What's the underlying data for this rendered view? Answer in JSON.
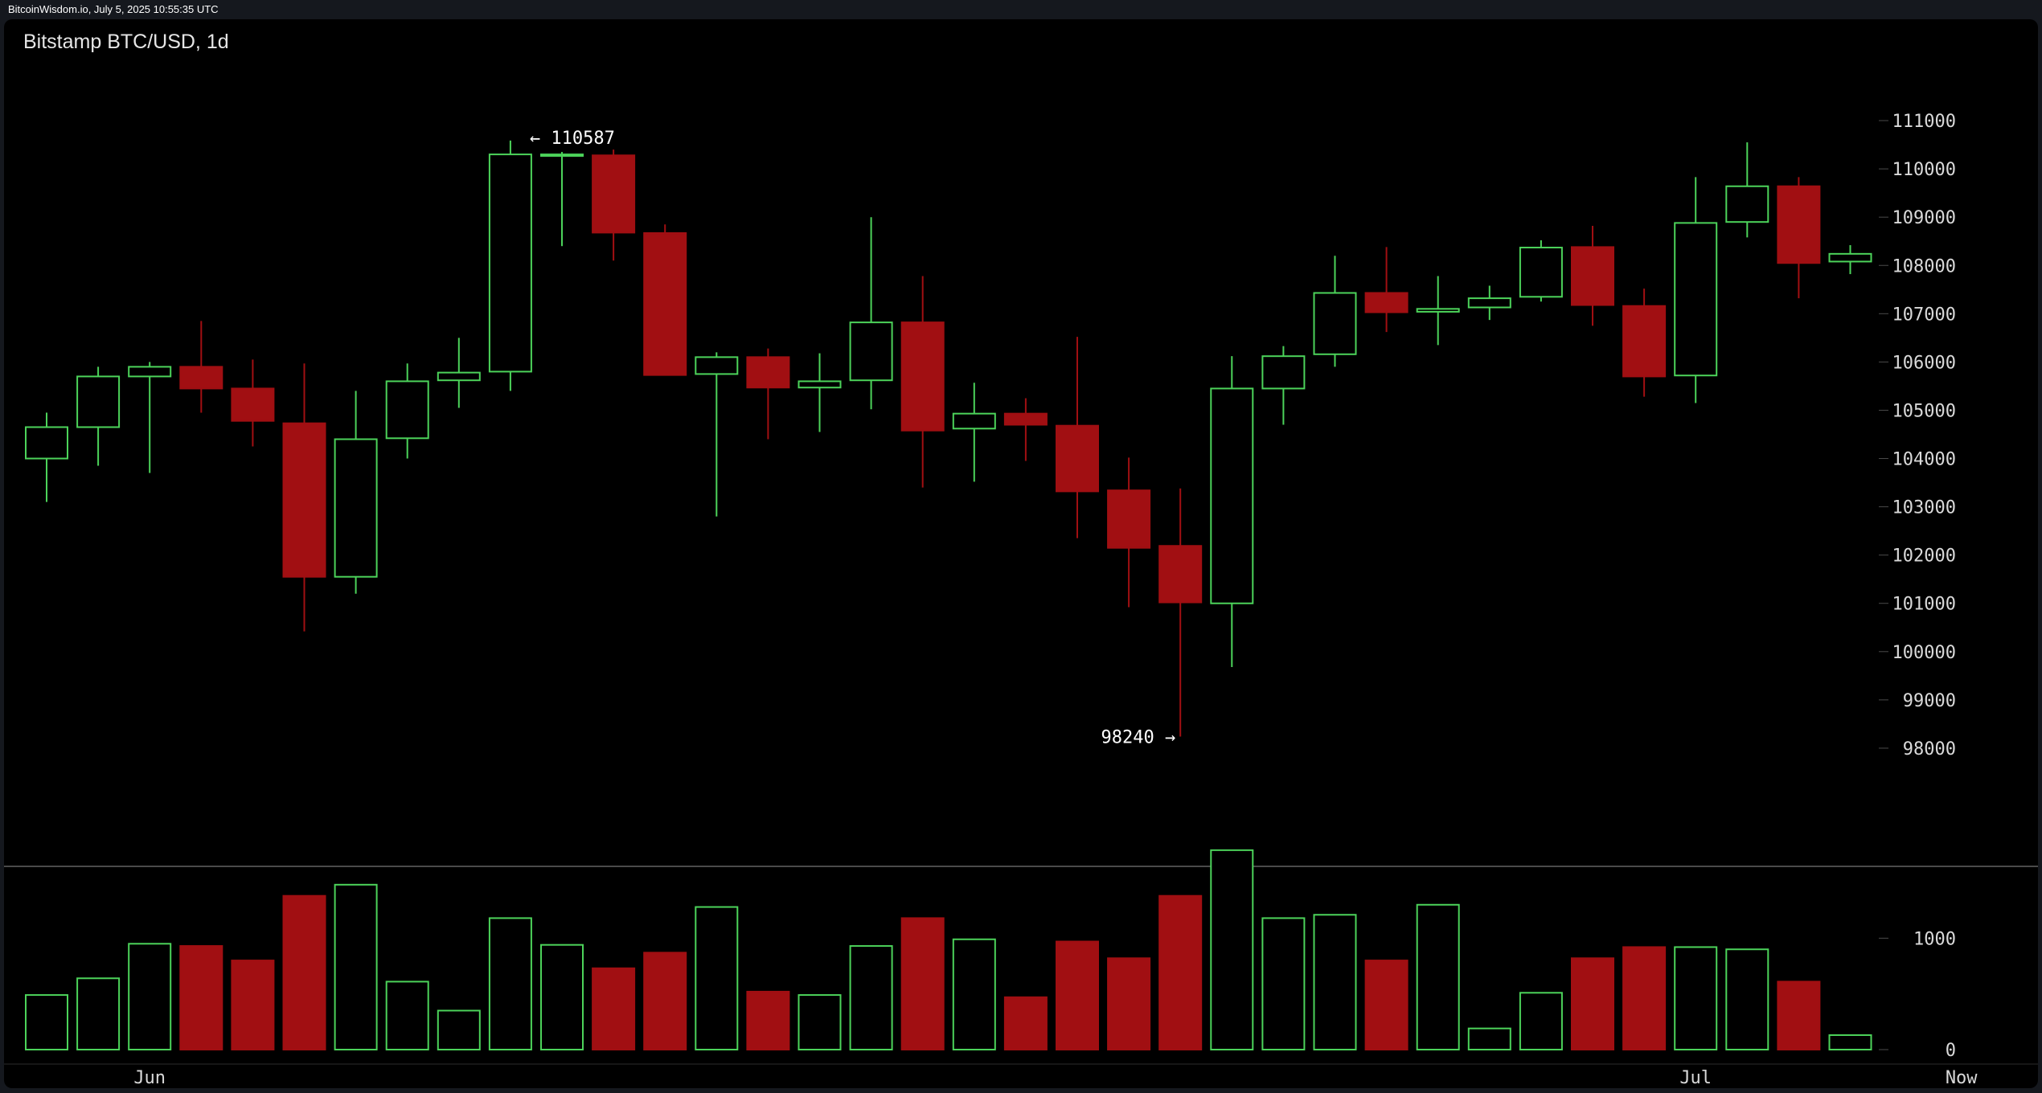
{
  "topbar": {
    "text": "BitcoinWisdom.io, July 5, 2025 10:55:35 UTC"
  },
  "colors": {
    "background": "#000000",
    "frame": "#15181e",
    "up": "#4cd35a",
    "down": "#a10f12",
    "grid": "#3a3a3a",
    "text": "#d9d9d9"
  },
  "chart_data": {
    "type": "candlestick",
    "title": "Bitstamp BTC/USD, 1d",
    "price_axis": {
      "ticks": [
        "111000",
        "110000",
        "109000",
        "108000",
        "107000",
        "106000",
        "105000",
        "104000",
        "103000",
        "102000",
        "101000",
        "100000",
        "99000",
        "98000"
      ],
      "range": [
        96900,
        111800
      ]
    },
    "volume_axis": {
      "ticks": [
        "1000",
        "0"
      ],
      "range": [
        0,
        1760
      ]
    },
    "x_labels": [
      {
        "label": "Jun",
        "index": 2
      },
      {
        "label": "Jul",
        "index": 32
      },
      {
        "label": "Now",
        "index": 37
      }
    ],
    "annotations": [
      {
        "text": "← 110587",
        "index": 9,
        "value": 110587,
        "side": "right"
      },
      {
        "text": "98240 →",
        "index": 22,
        "value": 98240,
        "side": "left"
      }
    ],
    "candles": [
      {
        "o": 104000,
        "h": 104950,
        "l": 103100,
        "c": 104650,
        "v": 490
      },
      {
        "o": 104650,
        "h": 105900,
        "l": 103850,
        "c": 105700,
        "v": 640
      },
      {
        "o": 105700,
        "h": 106000,
        "l": 103700,
        "c": 105900,
        "v": 950
      },
      {
        "o": 105900,
        "h": 106850,
        "l": 104950,
        "c": 105450,
        "v": 930
      },
      {
        "o": 105450,
        "h": 106050,
        "l": 104250,
        "c": 104780,
        "v": 800
      },
      {
        "o": 104730,
        "h": 105970,
        "l": 100420,
        "c": 101550,
        "v": 1380
      },
      {
        "o": 101550,
        "h": 105400,
        "l": 101200,
        "c": 104400,
        "v": 1480
      },
      {
        "o": 104420,
        "h": 105970,
        "l": 104000,
        "c": 105600,
        "v": 610
      },
      {
        "o": 105620,
        "h": 106500,
        "l": 105050,
        "c": 105780,
        "v": 350
      },
      {
        "o": 105800,
        "h": 110587,
        "l": 105400,
        "c": 110300,
        "v": 1180
      },
      {
        "o": 110300,
        "h": 110350,
        "l": 108400,
        "c": 110300,
        "v": 940
      },
      {
        "o": 110280,
        "h": 110400,
        "l": 108100,
        "c": 108680,
        "v": 730
      },
      {
        "o": 108670,
        "h": 108850,
        "l": 105720,
        "c": 105730,
        "v": 870
      },
      {
        "o": 105750,
        "h": 106200,
        "l": 102800,
        "c": 106100,
        "v": 1280
      },
      {
        "o": 106100,
        "h": 106280,
        "l": 104400,
        "c": 105470,
        "v": 520
      },
      {
        "o": 105470,
        "h": 106180,
        "l": 104550,
        "c": 105600,
        "v": 490
      },
      {
        "o": 105620,
        "h": 109000,
        "l": 105020,
        "c": 106820,
        "v": 930
      },
      {
        "o": 106820,
        "h": 107780,
        "l": 103400,
        "c": 104580,
        "v": 1180
      },
      {
        "o": 104620,
        "h": 105570,
        "l": 103520,
        "c": 104930,
        "v": 990
      },
      {
        "o": 104930,
        "h": 105250,
        "l": 103950,
        "c": 104700,
        "v": 470
      },
      {
        "o": 104680,
        "h": 106520,
        "l": 102350,
        "c": 103320,
        "v": 970
      },
      {
        "o": 103340,
        "h": 104020,
        "l": 100920,
        "c": 102150,
        "v": 820
      },
      {
        "o": 102190,
        "h": 103380,
        "l": 98240,
        "c": 101020,
        "v": 1380
      },
      {
        "o": 101000,
        "h": 106120,
        "l": 99680,
        "c": 105450,
        "v": 1790
      },
      {
        "o": 105450,
        "h": 106330,
        "l": 104700,
        "c": 106120,
        "v": 1180
      },
      {
        "o": 106160,
        "h": 108200,
        "l": 105900,
        "c": 107430,
        "v": 1210
      },
      {
        "o": 107430,
        "h": 108380,
        "l": 106620,
        "c": 107030,
        "v": 800
      },
      {
        "o": 107040,
        "h": 107780,
        "l": 106350,
        "c": 107100,
        "v": 1300
      },
      {
        "o": 107130,
        "h": 107580,
        "l": 106870,
        "c": 107320,
        "v": 190
      },
      {
        "o": 107350,
        "h": 108520,
        "l": 107250,
        "c": 108370,
        "v": 510
      },
      {
        "o": 108380,
        "h": 108820,
        "l": 106750,
        "c": 107180,
        "v": 820
      },
      {
        "o": 107160,
        "h": 107520,
        "l": 105280,
        "c": 105700,
        "v": 920
      },
      {
        "o": 105720,
        "h": 109830,
        "l": 105150,
        "c": 108880,
        "v": 920
      },
      {
        "o": 108900,
        "h": 110550,
        "l": 108580,
        "c": 109640,
        "v": 900
      },
      {
        "o": 109640,
        "h": 109830,
        "l": 107320,
        "c": 108050,
        "v": 610
      },
      {
        "o": 108080,
        "h": 108420,
        "l": 107820,
        "c": 108240,
        "v": 130
      }
    ]
  }
}
